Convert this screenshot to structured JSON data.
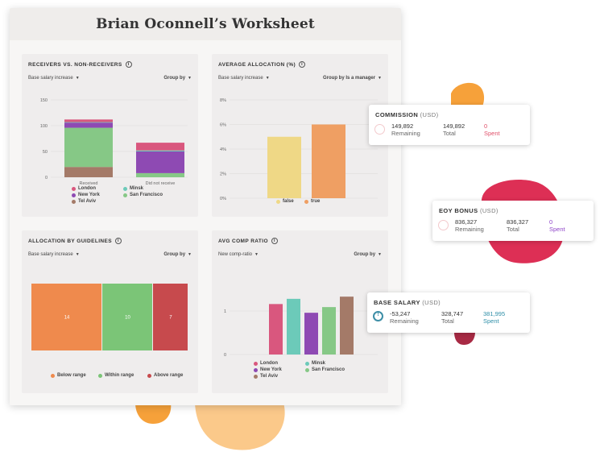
{
  "title": "Brian Oconnell’s Worksheet",
  "colors": {
    "london": "#d9577e",
    "minsk": "#6ccab9",
    "new_york": "#8e4ab3",
    "san_francisco": "#86c886",
    "tel_aviv": "#a47a68",
    "false_bar": "#efd886",
    "true_bar": "#ef9f63",
    "below_range": "#ef8a4d",
    "within_range": "#7bc577",
    "above_range": "#c74a4d",
    "blob_orange": "#f6a13a",
    "blob_red": "#dd2f55",
    "blob_peach": "#fbc98a",
    "blob_dark_red": "#a82a44",
    "spent_red": "#e0506a",
    "spent_purple": "#8f45c8",
    "spent_teal": "#2f8fa8"
  },
  "panels": {
    "receivers": {
      "title": "RECEIVERS VS. NON-RECEIVERS",
      "filter": "Base salary increase",
      "group": "Group by",
      "legend": [
        "London",
        "Minsk",
        "New York",
        "San Francisco",
        "Tel Aviv"
      ]
    },
    "avg_allocation": {
      "title": "AVERAGE ALLOCATION (%)",
      "filter": "Base salary increase",
      "group": "Group by Is a manager",
      "legend": [
        "false",
        "true"
      ]
    },
    "guidelines": {
      "title": "ALLOCATION BY GUIDELINES",
      "filter": "Base salary increase",
      "group": "Group by",
      "legend": [
        "Below range",
        "Within range",
        "Above range"
      ]
    },
    "comp_ratio": {
      "title": "AVG COMP RATIO",
      "filter": "New comp-ratio",
      "group": "Group by",
      "legend": [
        "London",
        "Minsk",
        "New York",
        "San Francisco",
        "Tel Aviv"
      ]
    }
  },
  "cards": {
    "commission": {
      "title": "COMMISSION",
      "unit": "(USD)",
      "remaining": "149,892",
      "remaining_label": "Remaining",
      "total": "149,892",
      "total_label": "Total",
      "spent": "0",
      "spent_label": "Spent"
    },
    "eoy": {
      "title": "EOY BONUS",
      "unit": "(USD)",
      "remaining": "836,327",
      "remaining_label": "Remaining",
      "total": "836,327",
      "total_label": "Total",
      "spent": "0",
      "spent_label": "Spent"
    },
    "base": {
      "title": "BASE SALARY",
      "unit": "(USD)",
      "remaining": "-53,247",
      "remaining_label": "Remaining",
      "total": "328,747",
      "total_label": "Total",
      "spent": "381,995",
      "spent_label": "Spent"
    }
  },
  "chart_data": [
    {
      "type": "bar",
      "stacked": true,
      "title": "RECEIVERS VS. NON-RECEIVERS",
      "categories": [
        "Received",
        "Did not receive"
      ],
      "yticks": [
        "150",
        "100",
        "50",
        "0"
      ],
      "ylim": [
        0,
        150
      ],
      "series": [
        {
          "name": "Tel Aviv",
          "values": [
            20,
            0
          ]
        },
        {
          "name": "San Francisco",
          "values": [
            76,
            8
          ]
        },
        {
          "name": "New York",
          "values": [
            10,
            42
          ]
        },
        {
          "name": "Minsk",
          "values": [
            1,
            2
          ]
        },
        {
          "name": "London",
          "values": [
            5,
            15
          ]
        }
      ]
    },
    {
      "type": "bar",
      "title": "AVERAGE ALLOCATION (%)",
      "categories": [
        "false",
        "true"
      ],
      "values": [
        5,
        6
      ],
      "yticks": [
        "8%",
        "6%",
        "4%",
        "2%",
        "0%"
      ],
      "ylim": [
        0,
        8
      ]
    },
    {
      "type": "bar",
      "stacked": true,
      "orientation": "horizontal",
      "title": "ALLOCATION BY GUIDELINES",
      "series": [
        {
          "name": "Below range",
          "values": [
            14
          ]
        },
        {
          "name": "Within range",
          "values": [
            10
          ]
        },
        {
          "name": "Above range",
          "values": [
            7
          ]
        }
      ]
    },
    {
      "type": "bar",
      "title": "AVG COMP RATIO",
      "categories": [
        "London",
        "Minsk",
        "New York",
        "San Francisco",
        "Tel Aviv"
      ],
      "values": [
        1.16,
        1.28,
        0.96,
        1.09,
        1.33
      ],
      "yticks": [
        "1",
        "0"
      ],
      "ylim": [
        0,
        1.5
      ]
    }
  ]
}
